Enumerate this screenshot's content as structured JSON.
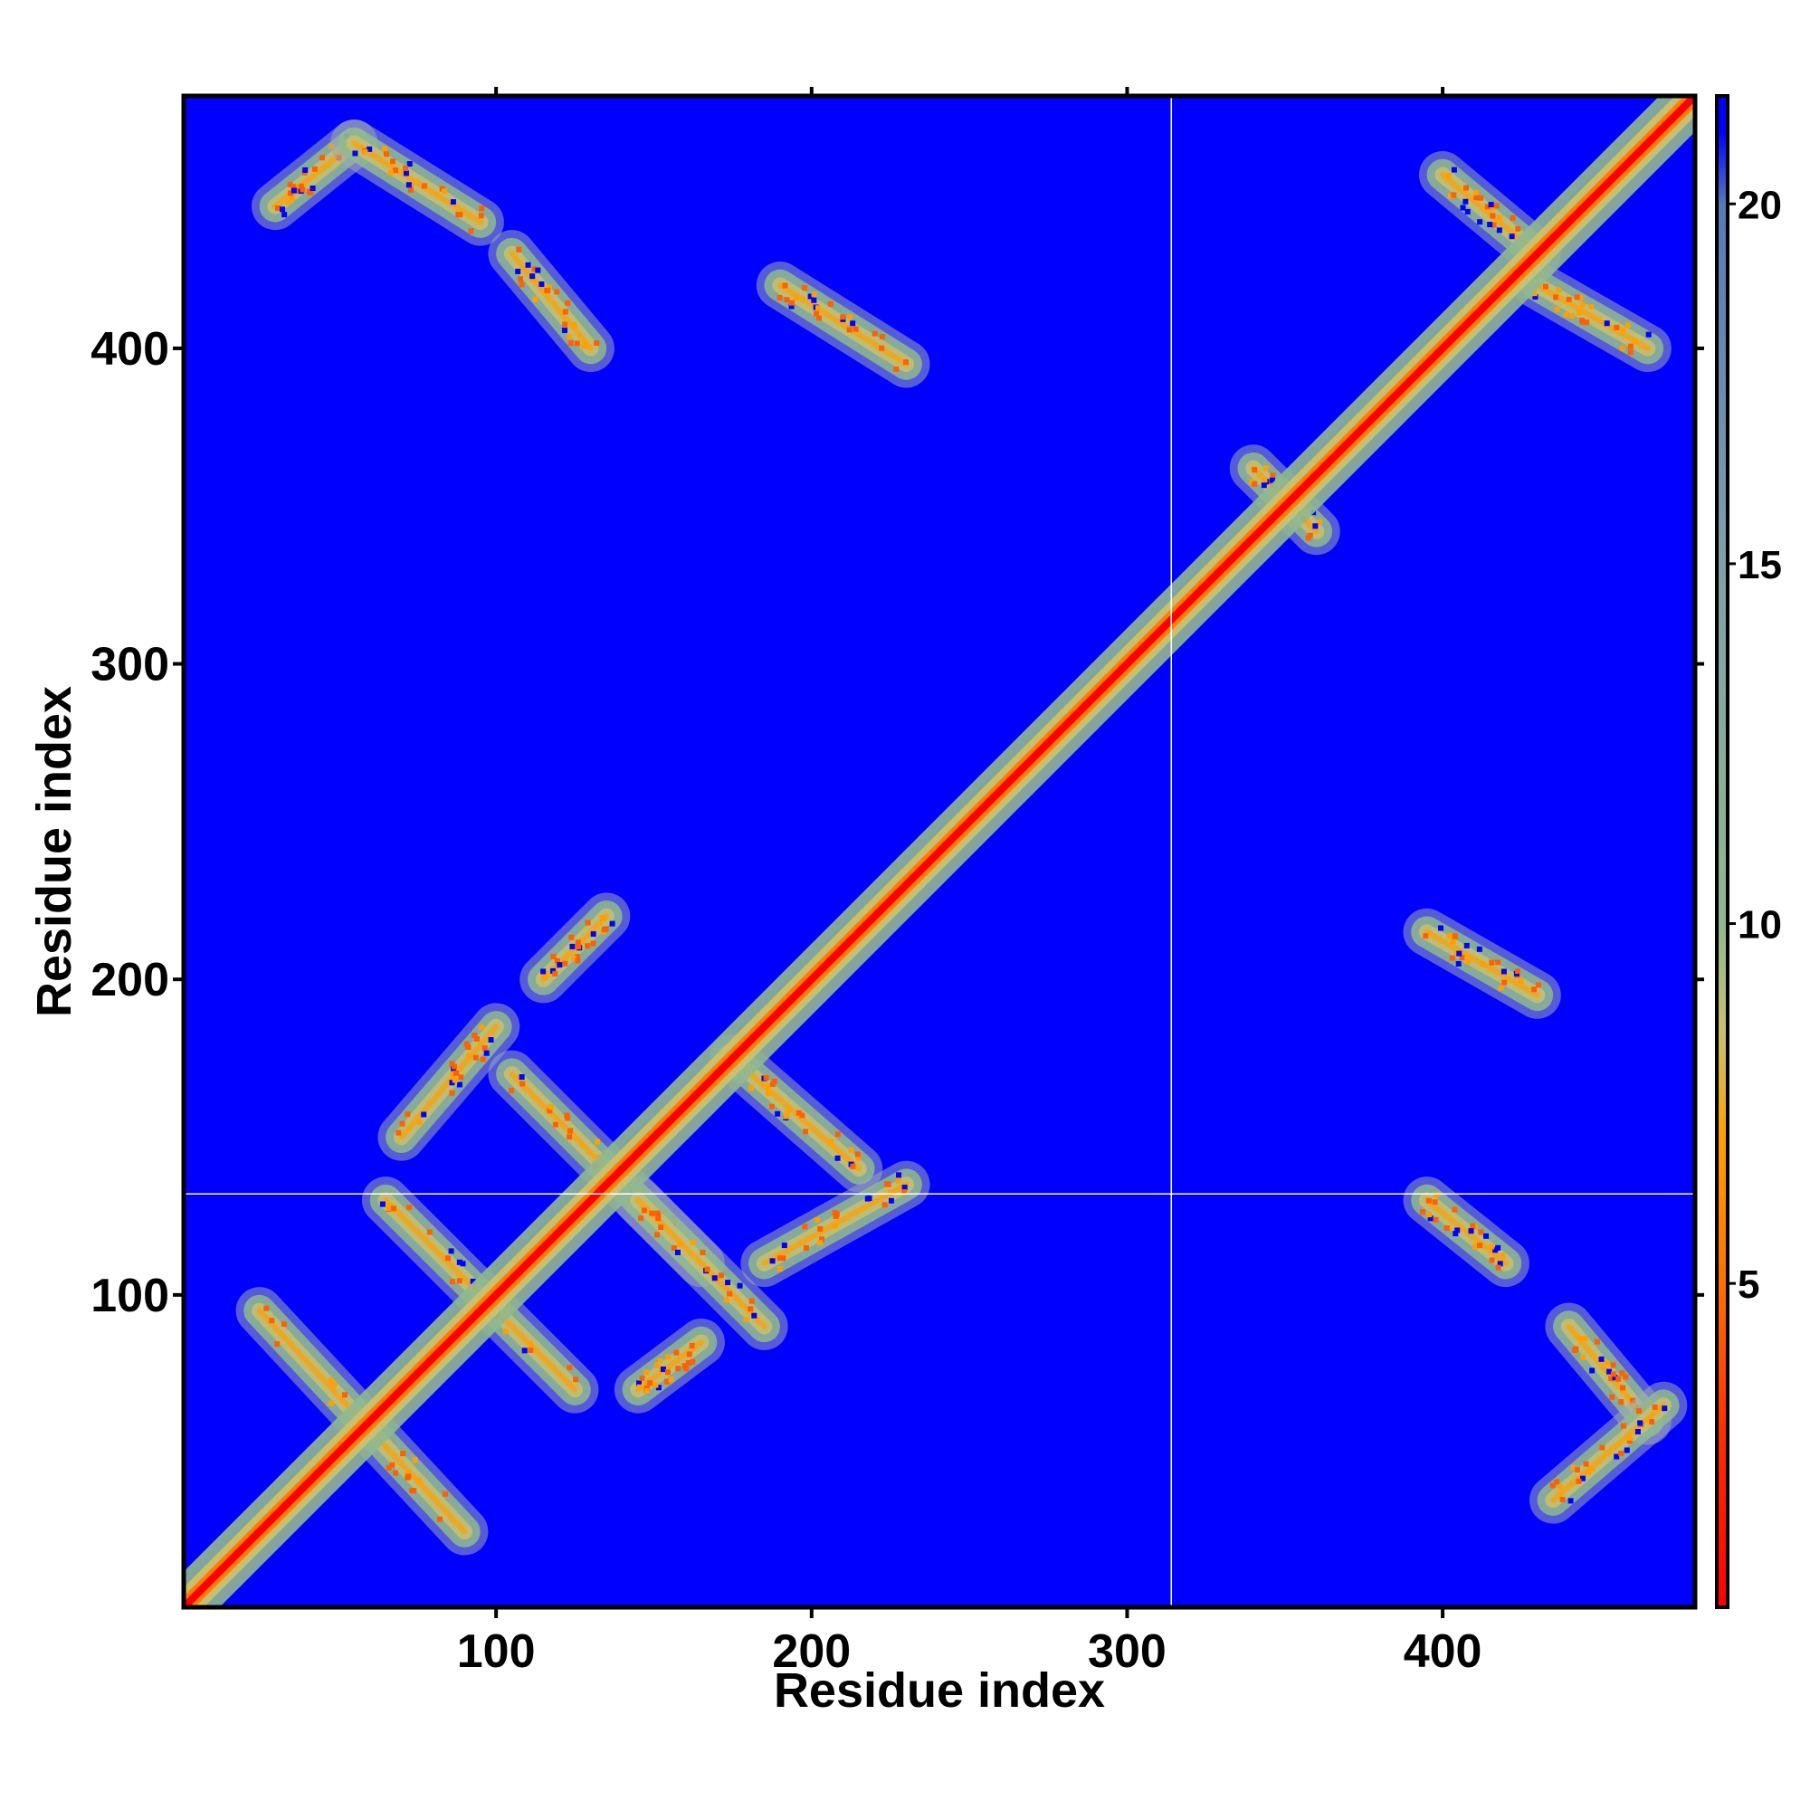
{
  "chart_data": {
    "type": "heatmap",
    "title": "",
    "xlabel": "Residue index",
    "ylabel": "Residue index",
    "xlim": [
      1,
      480
    ],
    "ylim": [
      1,
      480
    ],
    "x_ticks": [
      100,
      200,
      300,
      400
    ],
    "y_ticks": [
      100,
      200,
      300,
      400
    ],
    "x_tick_labels": [
      "100",
      "200",
      "300",
      "400"
    ],
    "y_tick_labels": [
      "100",
      "200",
      "300",
      "400"
    ],
    "crosshair": {
      "x": 314,
      "y": 132
    },
    "colorbar": {
      "min": 0.5,
      "max": 21.5,
      "ticks": [
        5,
        10,
        15,
        20
      ],
      "tick_labels": [
        "5",
        "10",
        "15",
        "20"
      ],
      "stops": [
        {
          "value": 0.5,
          "color": "#ff0000"
        },
        {
          "value": 3,
          "color": "#ff3000"
        },
        {
          "value": 5,
          "color": "#ff7000"
        },
        {
          "value": 7,
          "color": "#ffa000"
        },
        {
          "value": 8.5,
          "color": "#c8c070"
        },
        {
          "value": 10,
          "color": "#90b890"
        },
        {
          "value": 15,
          "color": "#80a0a8"
        },
        {
          "value": 20,
          "color": "#5878b8"
        },
        {
          "value": 21,
          "color": "#0000ff"
        },
        {
          "value": 21.5,
          "color": "#0000ff"
        }
      ]
    },
    "background_color": "#0000ff",
    "diagonal": {
      "from": 1,
      "to": 480
    },
    "contact_bands": [
      {
        "x": [
          25,
          90
        ],
        "y": [
          95,
          25
        ],
        "note": "antiparallel"
      },
      {
        "x": [
          65,
          125
        ],
        "y": [
          130,
          70
        ],
        "note": "antiparallel"
      },
      {
        "x": [
          105,
          165
        ],
        "y": [
          170,
          110
        ],
        "note": "antiparallel"
      },
      {
        "x": [
          145,
          185
        ],
        "y": [
          130,
          90
        ],
        "note": "antiparallel"
      },
      {
        "x": [
          175,
          215
        ],
        "y": [
          175,
          140
        ],
        "note": "antiparallel"
      },
      {
        "x": [
          185,
          230
        ],
        "y": [
          110,
          135
        ],
        "note": "parallel"
      },
      {
        "x": [
          70,
          100
        ],
        "y": [
          150,
          185
        ],
        "note": "parallel"
      },
      {
        "x": [
          115,
          135
        ],
        "y": [
          200,
          220
        ],
        "note": "parallel"
      },
      {
        "x": [
          145,
          165
        ],
        "y": [
          70,
          85
        ],
        "note": "parallel"
      },
      {
        "x": [
          30,
          55
        ],
        "y": [
          445,
          465
        ],
        "note": "parallel"
      },
      {
        "x": [
          55,
          95
        ],
        "y": [
          465,
          440
        ],
        "note": "antiparallel"
      },
      {
        "x": [
          105,
          130
        ],
        "y": [
          430,
          400
        ],
        "note": "antiparallel"
      },
      {
        "x": [
          190,
          230
        ],
        "y": [
          420,
          395
        ],
        "note": "antiparallel"
      },
      {
        "x": [
          395,
          430
        ],
        "y": [
          215,
          195
        ],
        "note": "antiparallel"
      },
      {
        "x": [
          395,
          420
        ],
        "y": [
          130,
          110
        ],
        "note": "antiparallel"
      },
      {
        "x": [
          440,
          465
        ],
        "y": [
          90,
          60
        ],
        "note": "antiparallel"
      },
      {
        "x": [
          435,
          470
        ],
        "y": [
          35,
          65
        ],
        "note": "parallel"
      },
      {
        "x": [
          400,
          430
        ],
        "y": [
          455,
          430
        ],
        "note": "antiparallel"
      },
      {
        "x": [
          430,
          465
        ],
        "y": [
          420,
          400
        ],
        "note": "antiparallel"
      },
      {
        "x": [
          340,
          360
        ],
        "y": [
          362,
          342
        ],
        "note": "antiparallel"
      }
    ]
  }
}
